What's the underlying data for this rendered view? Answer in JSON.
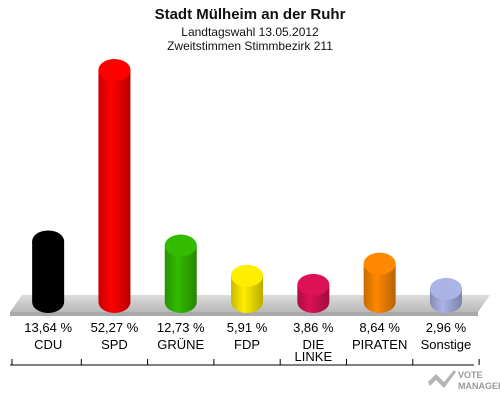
{
  "chart_data": {
    "type": "bar",
    "title": "Stadt Mülheim an der Ruhr",
    "subtitle_1": "Landtagswahl 13.05.2012",
    "subtitle_2": "Zweitstimmen Stimmbezirk 211",
    "categories": [
      "CDU",
      "SPD",
      "GRÜNE",
      "FDP",
      "DIE LINKE",
      "PIRATEN",
      "Sonstige"
    ],
    "values": [
      13.64,
      52.27,
      12.73,
      5.91,
      3.86,
      8.64,
      2.96
    ],
    "value_labels": [
      "13,64 %",
      "52,27 %",
      "12,73 %",
      "5,91 %",
      "3,86 %",
      "8,64 %",
      "2,96 %"
    ],
    "colors": [
      "#000000",
      "#ff0000",
      "#33bb00",
      "#ffee00",
      "#dd1155",
      "#ff8800",
      "#aab4e6"
    ],
    "ylim": [
      0,
      52.27
    ]
  },
  "watermark": {
    "line1": "VOTE",
    "line2": "MANAGER"
  }
}
